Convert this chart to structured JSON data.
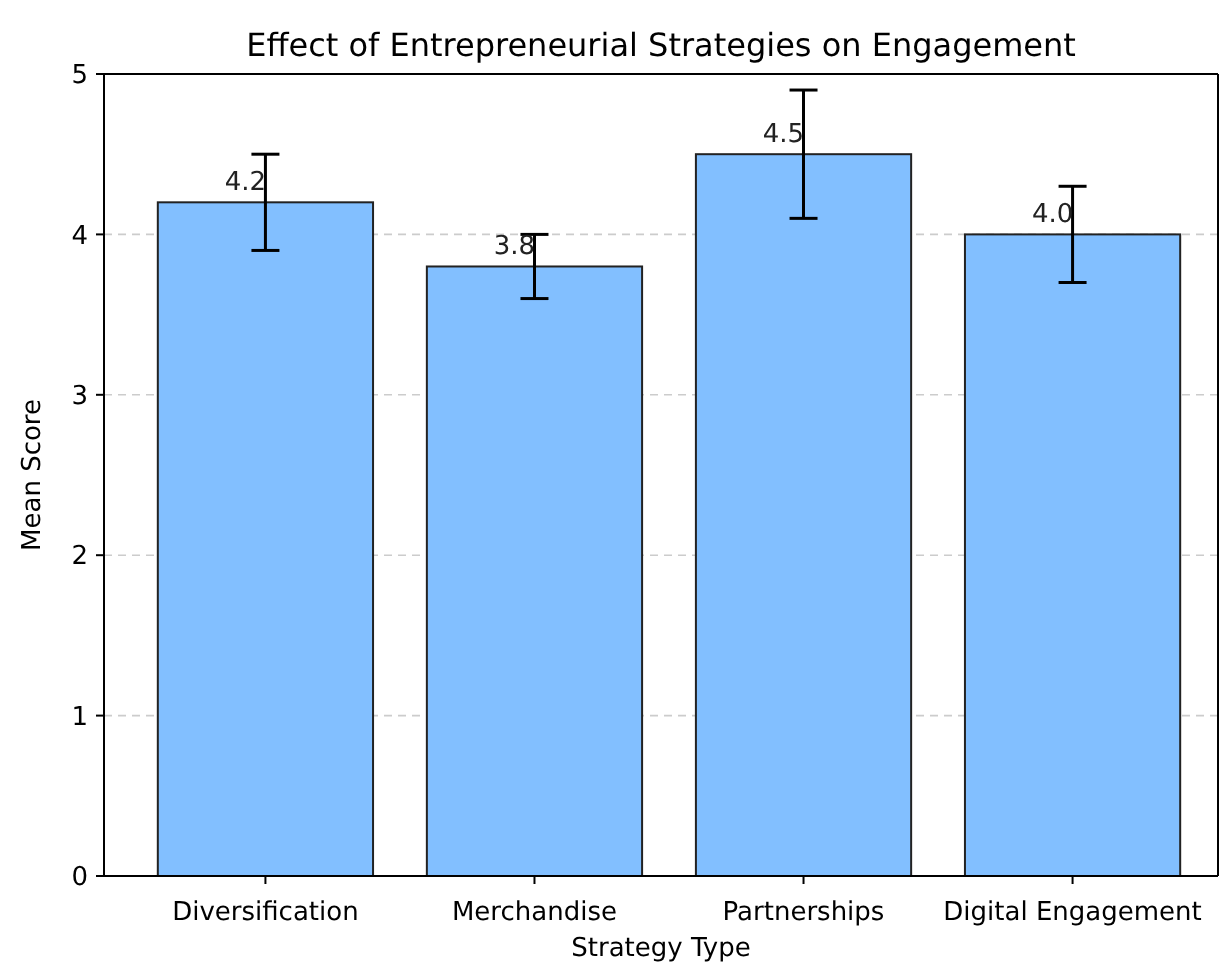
{
  "chart_data": {
    "type": "bar",
    "title": "Effect of Entrepreneurial Strategies on Engagement",
    "xlabel": "Strategy Type",
    "ylabel": "Mean Score",
    "categories": [
      "Diversification",
      "Merchandise",
      "Partnerships",
      "Digital Engagement"
    ],
    "values": [
      4.2,
      3.8,
      4.5,
      4.0
    ],
    "errors": [
      0.3,
      0.2,
      0.4,
      0.3
    ],
    "color": "#82bfff",
    "value_labels": [
      "4.2",
      "3.8",
      "4.5",
      "4.0"
    ],
    "ylim": [
      0,
      5
    ],
    "yticks": [
      0,
      1,
      2,
      3,
      4,
      5
    ],
    "grid": "y"
  }
}
